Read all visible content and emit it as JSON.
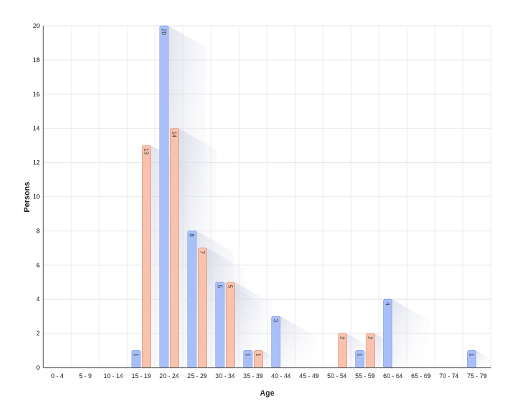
{
  "chart_data": {
    "type": "bar",
    "title": "",
    "xlabel": "Age",
    "ylabel": "Persons",
    "ylim": [
      0,
      20
    ],
    "yticks": [
      0,
      2,
      4,
      6,
      8,
      10,
      12,
      14,
      16,
      18,
      20
    ],
    "grid": true,
    "categories": [
      "0 - 4",
      "5 - 9",
      "10 - 14",
      "15 - 19",
      "20 - 24",
      "25 - 29",
      "30 - 34",
      "35 - 39",
      "40 - 44",
      "45 - 49",
      "50 - 54",
      "55 - 59",
      "60 - 64",
      "65 - 69",
      "70 - 74",
      "75 - 79"
    ],
    "series": [
      {
        "color": "#a9bff8",
        "stroke": "#7f9ce8",
        "values": [
          0,
          0,
          0,
          1,
          20,
          8,
          5,
          1,
          3,
          0,
          0,
          1,
          4,
          0,
          0,
          1
        ]
      },
      {
        "color": "#f8c2ad",
        "stroke": "#e89a82",
        "values": [
          0,
          0,
          0,
          13,
          14,
          7,
          5,
          1,
          0,
          0,
          2,
          2,
          0,
          0,
          0,
          0
        ]
      }
    ]
  }
}
